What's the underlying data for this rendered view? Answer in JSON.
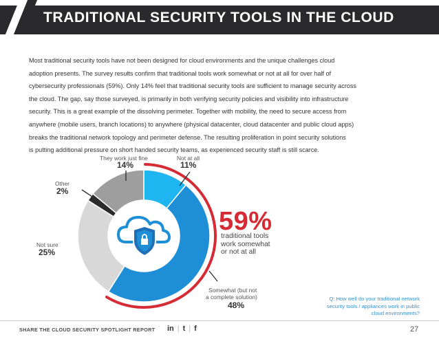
{
  "header": {
    "title": "TRADITIONAL SECURITY TOOLS IN THE CLOUD"
  },
  "body": {
    "lines": [
      "Most traditional security tools have not been designed for cloud environments and the unique challenges cloud",
      "adoption presents. The survey results confirm that traditional tools work somewhat or not at all for over half of",
      "cybersecurity professionals (59%). Only 14% feel that traditional security tools are sufficient to manage security across",
      "the cloud. The gap, say those surveyed, is primarily in both verifying security policies and visibility into infrastructure",
      "security. This is a great example of the dissolving perimeter. Together with mobility, the need to secure access from",
      "anywhere (mobile users, branch locations) to anywhere (physical datacenter, cloud datacenter and public cloud apps)",
      "breaks the traditional network topology and perimeter defense. The resulting proliferation in point security solutions",
      "is putting additional pressure on short handed security teams, as experienced security staff is still scarce."
    ]
  },
  "chart_data": {
    "type": "pie",
    "variant": "donut",
    "slices": [
      {
        "label": "Not at all",
        "value": 11,
        "display": "11%",
        "color": "#1eb5f0"
      },
      {
        "label": "Somewhat (but not a complete solution)",
        "value": 48,
        "display": "48%",
        "color": "#1e8fd6"
      },
      {
        "label": "Not sure",
        "value": 25,
        "display": "25%",
        "color": "#d8d8d8"
      },
      {
        "label": "Other",
        "value": 2,
        "display": "2%",
        "color": "#2b2b2b"
      },
      {
        "label": "They work just fine",
        "value": 14,
        "display": "14%",
        "color": "#9e9e9e"
      }
    ],
    "labels": {
      "fine": "They work just fine",
      "notatall": "Not at all",
      "other": "Other",
      "notsure": "Not sure",
      "somewhat_line1": "Somewhat (but not",
      "somewhat_line2": "a complete solution)"
    },
    "highlight": {
      "value": "59%",
      "line1": "traditional tools",
      "line2": "work somewhat",
      "line3": "or not at all",
      "color": "#d42b34"
    },
    "question": {
      "line1": "Q: How well do your traditional network",
      "line2": "security tools / appliances work in public",
      "line3": "cloud environments?"
    },
    "center_icon": "cloud-shield-lock-icon"
  },
  "footer": {
    "share": "SHARE THE CLOUD SECURITY SPOTLIGHT REPORT",
    "linkedin": "in",
    "twitter": "t",
    "facebook": "f",
    "page": "27"
  }
}
